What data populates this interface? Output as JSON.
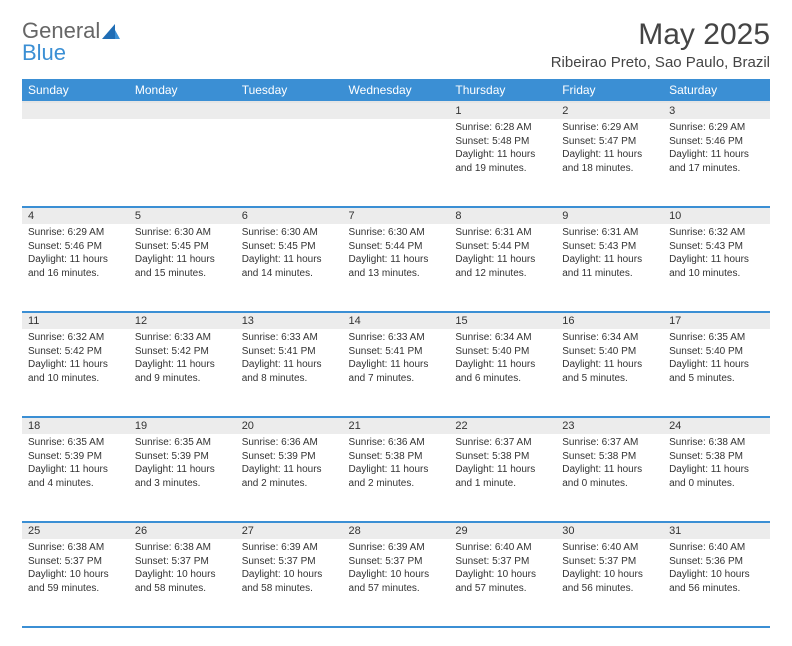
{
  "logo": {
    "text1": "General",
    "text2": "Blue"
  },
  "title": {
    "month": "May 2025",
    "location": "Ribeirao Preto, Sao Paulo, Brazil"
  },
  "colors": {
    "header_bg": "#3b8fd4",
    "header_fg": "#ffffff",
    "daynum_bg": "#ececec",
    "row_border": "#3b8fd4"
  },
  "weekdays": [
    "Sunday",
    "Monday",
    "Tuesday",
    "Wednesday",
    "Thursday",
    "Friday",
    "Saturday"
  ],
  "weeks": [
    {
      "nums": [
        "",
        "",
        "",
        "",
        "1",
        "2",
        "3"
      ],
      "cells": [
        null,
        null,
        null,
        null,
        {
          "sunrise": "Sunrise: 6:28 AM",
          "sunset": "Sunset: 5:48 PM",
          "daylight": "Daylight: 11 hours and 19 minutes."
        },
        {
          "sunrise": "Sunrise: 6:29 AM",
          "sunset": "Sunset: 5:47 PM",
          "daylight": "Daylight: 11 hours and 18 minutes."
        },
        {
          "sunrise": "Sunrise: 6:29 AM",
          "sunset": "Sunset: 5:46 PM",
          "daylight": "Daylight: 11 hours and 17 minutes."
        }
      ]
    },
    {
      "nums": [
        "4",
        "5",
        "6",
        "7",
        "8",
        "9",
        "10"
      ],
      "cells": [
        {
          "sunrise": "Sunrise: 6:29 AM",
          "sunset": "Sunset: 5:46 PM",
          "daylight": "Daylight: 11 hours and 16 minutes."
        },
        {
          "sunrise": "Sunrise: 6:30 AM",
          "sunset": "Sunset: 5:45 PM",
          "daylight": "Daylight: 11 hours and 15 minutes."
        },
        {
          "sunrise": "Sunrise: 6:30 AM",
          "sunset": "Sunset: 5:45 PM",
          "daylight": "Daylight: 11 hours and 14 minutes."
        },
        {
          "sunrise": "Sunrise: 6:30 AM",
          "sunset": "Sunset: 5:44 PM",
          "daylight": "Daylight: 11 hours and 13 minutes."
        },
        {
          "sunrise": "Sunrise: 6:31 AM",
          "sunset": "Sunset: 5:44 PM",
          "daylight": "Daylight: 11 hours and 12 minutes."
        },
        {
          "sunrise": "Sunrise: 6:31 AM",
          "sunset": "Sunset: 5:43 PM",
          "daylight": "Daylight: 11 hours and 11 minutes."
        },
        {
          "sunrise": "Sunrise: 6:32 AM",
          "sunset": "Sunset: 5:43 PM",
          "daylight": "Daylight: 11 hours and 10 minutes."
        }
      ]
    },
    {
      "nums": [
        "11",
        "12",
        "13",
        "14",
        "15",
        "16",
        "17"
      ],
      "cells": [
        {
          "sunrise": "Sunrise: 6:32 AM",
          "sunset": "Sunset: 5:42 PM",
          "daylight": "Daylight: 11 hours and 10 minutes."
        },
        {
          "sunrise": "Sunrise: 6:33 AM",
          "sunset": "Sunset: 5:42 PM",
          "daylight": "Daylight: 11 hours and 9 minutes."
        },
        {
          "sunrise": "Sunrise: 6:33 AM",
          "sunset": "Sunset: 5:41 PM",
          "daylight": "Daylight: 11 hours and 8 minutes."
        },
        {
          "sunrise": "Sunrise: 6:33 AM",
          "sunset": "Sunset: 5:41 PM",
          "daylight": "Daylight: 11 hours and 7 minutes."
        },
        {
          "sunrise": "Sunrise: 6:34 AM",
          "sunset": "Sunset: 5:40 PM",
          "daylight": "Daylight: 11 hours and 6 minutes."
        },
        {
          "sunrise": "Sunrise: 6:34 AM",
          "sunset": "Sunset: 5:40 PM",
          "daylight": "Daylight: 11 hours and 5 minutes."
        },
        {
          "sunrise": "Sunrise: 6:35 AM",
          "sunset": "Sunset: 5:40 PM",
          "daylight": "Daylight: 11 hours and 5 minutes."
        }
      ]
    },
    {
      "nums": [
        "18",
        "19",
        "20",
        "21",
        "22",
        "23",
        "24"
      ],
      "cells": [
        {
          "sunrise": "Sunrise: 6:35 AM",
          "sunset": "Sunset: 5:39 PM",
          "daylight": "Daylight: 11 hours and 4 minutes."
        },
        {
          "sunrise": "Sunrise: 6:35 AM",
          "sunset": "Sunset: 5:39 PM",
          "daylight": "Daylight: 11 hours and 3 minutes."
        },
        {
          "sunrise": "Sunrise: 6:36 AM",
          "sunset": "Sunset: 5:39 PM",
          "daylight": "Daylight: 11 hours and 2 minutes."
        },
        {
          "sunrise": "Sunrise: 6:36 AM",
          "sunset": "Sunset: 5:38 PM",
          "daylight": "Daylight: 11 hours and 2 minutes."
        },
        {
          "sunrise": "Sunrise: 6:37 AM",
          "sunset": "Sunset: 5:38 PM",
          "daylight": "Daylight: 11 hours and 1 minute."
        },
        {
          "sunrise": "Sunrise: 6:37 AM",
          "sunset": "Sunset: 5:38 PM",
          "daylight": "Daylight: 11 hours and 0 minutes."
        },
        {
          "sunrise": "Sunrise: 6:38 AM",
          "sunset": "Sunset: 5:38 PM",
          "daylight": "Daylight: 11 hours and 0 minutes."
        }
      ]
    },
    {
      "nums": [
        "25",
        "26",
        "27",
        "28",
        "29",
        "30",
        "31"
      ],
      "cells": [
        {
          "sunrise": "Sunrise: 6:38 AM",
          "sunset": "Sunset: 5:37 PM",
          "daylight": "Daylight: 10 hours and 59 minutes."
        },
        {
          "sunrise": "Sunrise: 6:38 AM",
          "sunset": "Sunset: 5:37 PM",
          "daylight": "Daylight: 10 hours and 58 minutes."
        },
        {
          "sunrise": "Sunrise: 6:39 AM",
          "sunset": "Sunset: 5:37 PM",
          "daylight": "Daylight: 10 hours and 58 minutes."
        },
        {
          "sunrise": "Sunrise: 6:39 AM",
          "sunset": "Sunset: 5:37 PM",
          "daylight": "Daylight: 10 hours and 57 minutes."
        },
        {
          "sunrise": "Sunrise: 6:40 AM",
          "sunset": "Sunset: 5:37 PM",
          "daylight": "Daylight: 10 hours and 57 minutes."
        },
        {
          "sunrise": "Sunrise: 6:40 AM",
          "sunset": "Sunset: 5:37 PM",
          "daylight": "Daylight: 10 hours and 56 minutes."
        },
        {
          "sunrise": "Sunrise: 6:40 AM",
          "sunset": "Sunset: 5:36 PM",
          "daylight": "Daylight: 10 hours and 56 minutes."
        }
      ]
    }
  ]
}
